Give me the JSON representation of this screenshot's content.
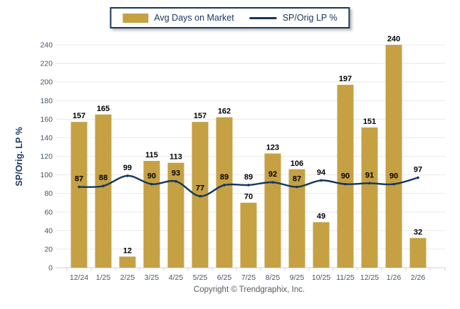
{
  "legend": {
    "bar_label": "Avg Days on Market",
    "line_label": "SP/Orig LP %"
  },
  "chart_data": {
    "type": "bar",
    "categories": [
      "12/24",
      "1/25",
      "2/25",
      "3/25",
      "4/25",
      "5/25",
      "6/25",
      "7/25",
      "8/25",
      "9/25",
      "10/25",
      "11/25",
      "12/25",
      "1/26",
      "2/26"
    ],
    "series": [
      {
        "name": "Avg Days on Market",
        "type": "bar",
        "color": "#C5A144",
        "values": [
          157,
          165,
          12,
          115,
          113,
          157,
          162,
          70,
          123,
          106,
          49,
          197,
          151,
          240,
          32
        ]
      },
      {
        "name": "SP/Orig LP %",
        "type": "line",
        "color": "#17365D",
        "values": [
          87,
          88,
          99,
          90,
          93,
          77,
          89,
          89,
          92,
          87,
          94,
          90,
          91,
          90,
          97
        ]
      }
    ],
    "title": "",
    "xlabel": "",
    "ylabel": "SP/Orig. LP %",
    "ylim": [
      0,
      240
    ],
    "ytick_step": 20,
    "grid": true,
    "legend_position": "top-center"
  },
  "footer": {
    "copyright": "Copyright © Trendgraphix, Inc."
  },
  "colors": {
    "bar": "#C5A144",
    "line": "#17365D",
    "axis_text": "#44546A",
    "value_label": "#000000",
    "grid": "#E8E8E8",
    "axis_line": "#D0D0D0"
  }
}
